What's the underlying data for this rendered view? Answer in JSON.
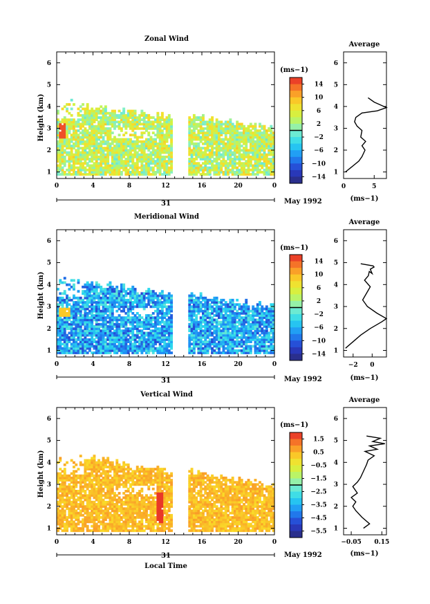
{
  "chart_data": [
    {
      "type": "heatmap",
      "title": "Zonal Wind",
      "ylabel": "Height (km)",
      "xlabel": "",
      "x_ticks": [
        "0",
        "4",
        "8",
        "12",
        "16",
        "20",
        "0"
      ],
      "y_ticks": [
        "1",
        "2",
        "3",
        "4",
        "5",
        "6"
      ],
      "ylim": [
        0.7,
        6.5
      ],
      "xlim": [
        0,
        24
      ],
      "date_day": "31",
      "date_label": "May 1992",
      "colorbar": {
        "unit": "(ms−1)",
        "ticks": [
          "14",
          "10",
          "6",
          "2",
          "−2",
          "−6",
          "−10",
          "−14"
        ],
        "range": [
          -16,
          16
        ]
      },
      "data_extent": {
        "y_top_range": [
          3.0,
          4.2
        ],
        "gap_hours": [
          12.6,
          14.3
        ]
      },
      "average": {
        "title": "Average",
        "xlabel": "(ms−1)",
        "x_ticks": [
          "0",
          "5"
        ],
        "xlim": [
          0,
          7
        ],
        "profile_x": [
          0.3,
          1.2,
          2.5,
          3.0,
          3.5,
          3.0,
          3.6,
          2.8,
          3.0,
          2.2,
          1.8,
          2.0,
          3.0,
          5.5,
          7.0,
          5.0,
          4.0
        ],
        "profile_y": [
          1.0,
          1.2,
          1.5,
          1.7,
          2.0,
          2.2,
          2.4,
          2.6,
          2.9,
          3.1,
          3.3,
          3.5,
          3.7,
          3.8,
          3.95,
          4.2,
          4.4
        ]
      }
    },
    {
      "type": "heatmap",
      "title": "Meridional Wind",
      "ylabel": "Height (km)",
      "xlabel": "",
      "x_ticks": [
        "0",
        "4",
        "8",
        "12",
        "16",
        "20",
        "0"
      ],
      "y_ticks": [
        "1",
        "2",
        "3",
        "4",
        "5",
        "6"
      ],
      "ylim": [
        0.7,
        6.5
      ],
      "xlim": [
        0,
        24
      ],
      "date_day": "31",
      "date_label": "May 1992",
      "colorbar": {
        "unit": "(ms−1)",
        "ticks": [
          "14",
          "10",
          "6",
          "2",
          "−2",
          "−6",
          "−10",
          "−14"
        ],
        "range": [
          -16,
          16
        ]
      },
      "data_extent": {
        "y_top_range": [
          3.0,
          4.3
        ],
        "gap_hours": [
          12.6,
          14.3
        ]
      },
      "average": {
        "title": "Average",
        "xlabel": "(ms−1)",
        "x_ticks": [
          "−2",
          "0"
        ],
        "xlim": [
          -3,
          1.5
        ],
        "profile_x": [
          -2.8,
          -2.0,
          -1.2,
          -0.2,
          1.0,
          1.5,
          0.5,
          -0.5,
          -1.0,
          -0.6,
          -0.2,
          -0.8,
          -0.4,
          -0.3,
          0.0,
          -0.2,
          0.2,
          0.1,
          -1.2
        ],
        "profile_y": [
          1.1,
          1.4,
          1.7,
          2.0,
          2.3,
          2.45,
          2.7,
          3.0,
          3.3,
          3.6,
          3.9,
          4.2,
          4.4,
          4.6,
          4.5,
          4.7,
          4.8,
          4.85,
          4.95
        ]
      }
    },
    {
      "type": "heatmap",
      "title": "Vertical Wind",
      "ylabel": "Height (km)",
      "xlabel": "Local Time",
      "x_ticks": [
        "0",
        "4",
        "8",
        "12",
        "16",
        "20",
        "0"
      ],
      "y_ticks": [
        "1",
        "2",
        "3",
        "4",
        "5",
        "6"
      ],
      "ylim": [
        0.7,
        6.5
      ],
      "xlim": [
        0,
        24
      ],
      "date_day": "31",
      "date_label": "May 1992",
      "colorbar": {
        "unit": "(ms−1)",
        "ticks": [
          "1.5",
          "0.5",
          "−0.5",
          "−1.5",
          "−2.5",
          "−3.5",
          "−4.5",
          "−5.5"
        ],
        "range": [
          -6,
          2
        ]
      },
      "data_extent": {
        "y_top_range": [
          3.0,
          4.4
        ],
        "gap_hours": [
          12.6,
          14.3
        ]
      },
      "average": {
        "title": "Average",
        "xlabel": "(ms−1)",
        "x_ticks": [
          "−0.05",
          "0.15"
        ],
        "xlim": [
          -0.1,
          0.18
        ],
        "profile_x": [
          0.03,
          0.07,
          0.02,
          -0.02,
          -0.04,
          -0.02,
          -0.05,
          -0.01,
          -0.04,
          -0.01,
          0.01,
          0.03,
          0.05,
          0.06,
          0.1,
          0.04,
          0.12,
          0.07,
          0.17,
          0.09,
          0.14,
          0.05
        ],
        "profile_y": [
          1.0,
          1.2,
          1.5,
          1.8,
          2.0,
          2.2,
          2.4,
          2.6,
          2.9,
          3.1,
          3.3,
          3.6,
          3.9,
          4.1,
          4.3,
          4.5,
          4.6,
          4.75,
          4.85,
          4.95,
          5.1,
          5.2
        ]
      }
    }
  ]
}
